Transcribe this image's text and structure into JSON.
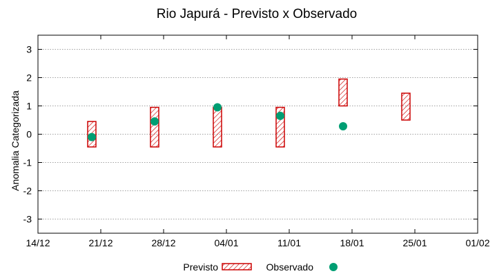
{
  "chart_data": {
    "type": "range_bar_with_points",
    "title": "Rio Japurá - Previsto x Observado",
    "xlabel": "",
    "ylabel": "Anomalia Categorizada",
    "ylim": [
      -3.5,
      3.5
    ],
    "yticks": [
      3,
      2,
      1,
      0,
      -1,
      -2,
      -3
    ],
    "ytick_labels": [
      "3",
      "2",
      "1",
      "0",
      "-1",
      "-2",
      "-3"
    ],
    "xlim": [
      "14/12",
      "01/02"
    ],
    "xtick_labels": [
      "14/12",
      "21/12",
      "28/12",
      "04/01",
      "11/01",
      "18/01",
      "25/01",
      "01/02"
    ],
    "grid": true,
    "legend_position": "bottom",
    "series": [
      {
        "name": "Previsto",
        "color": "#cc0000",
        "style": "hatched-box",
        "ranges": [
          {
            "x": "20/12",
            "low": -0.45,
            "high": 0.45
          },
          {
            "x": "27/12",
            "low": -0.45,
            "high": 0.95
          },
          {
            "x": "03/01",
            "low": -0.45,
            "high": 0.95
          },
          {
            "x": "10/01",
            "low": -0.45,
            "high": 0.95
          },
          {
            "x": "17/01",
            "low": 1.0,
            "high": 1.95
          },
          {
            "x": "24/01",
            "low": 0.5,
            "high": 1.45
          }
        ]
      },
      {
        "name": "Observado",
        "color": "#009e73",
        "style": "point",
        "points": [
          {
            "x": "20/12",
            "y": -0.1
          },
          {
            "x": "27/12",
            "y": 0.45
          },
          {
            "x": "03/01",
            "y": 0.95
          },
          {
            "x": "10/01",
            "y": 0.65
          },
          {
            "x": "17/01",
            "y": 0.28
          }
        ]
      }
    ]
  }
}
